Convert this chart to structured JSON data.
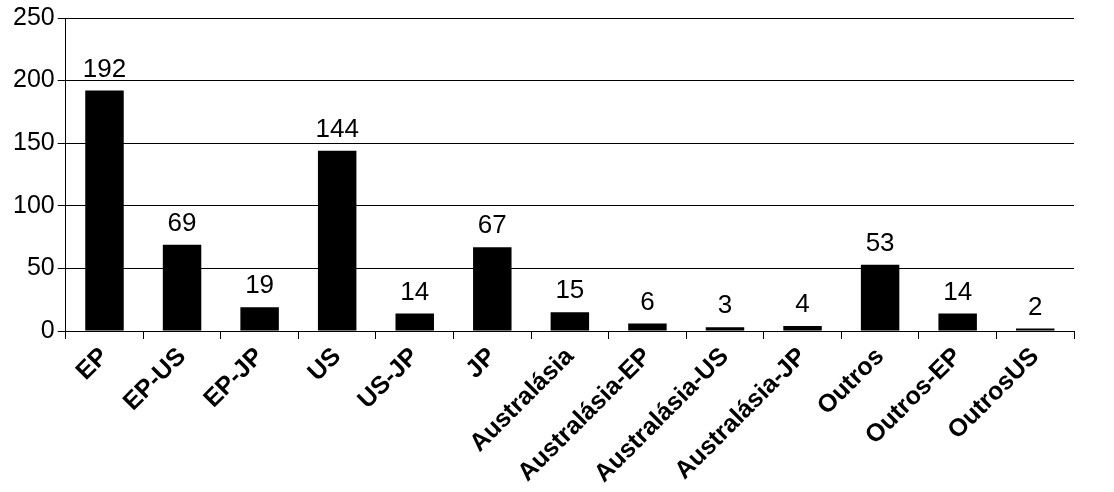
{
  "chart_data": {
    "type": "bar",
    "categories": [
      "EP",
      "EP-US",
      "EP-JP",
      "US",
      "US-JP",
      "JP",
      "Australásia",
      "Australásia-EP",
      "Australásia-US",
      "Australásia-JP",
      "Outros",
      "Outros-EP",
      "OutrosUS"
    ],
    "values": [
      192,
      69,
      19,
      144,
      14,
      67,
      15,
      6,
      3,
      4,
      53,
      14,
      2
    ],
    "color": "#000000",
    "ylim": [
      0,
      250
    ],
    "yticks": [
      0,
      50,
      100,
      150,
      200,
      250
    ],
    "grid": "y",
    "data_labels": true,
    "legend": false
  }
}
